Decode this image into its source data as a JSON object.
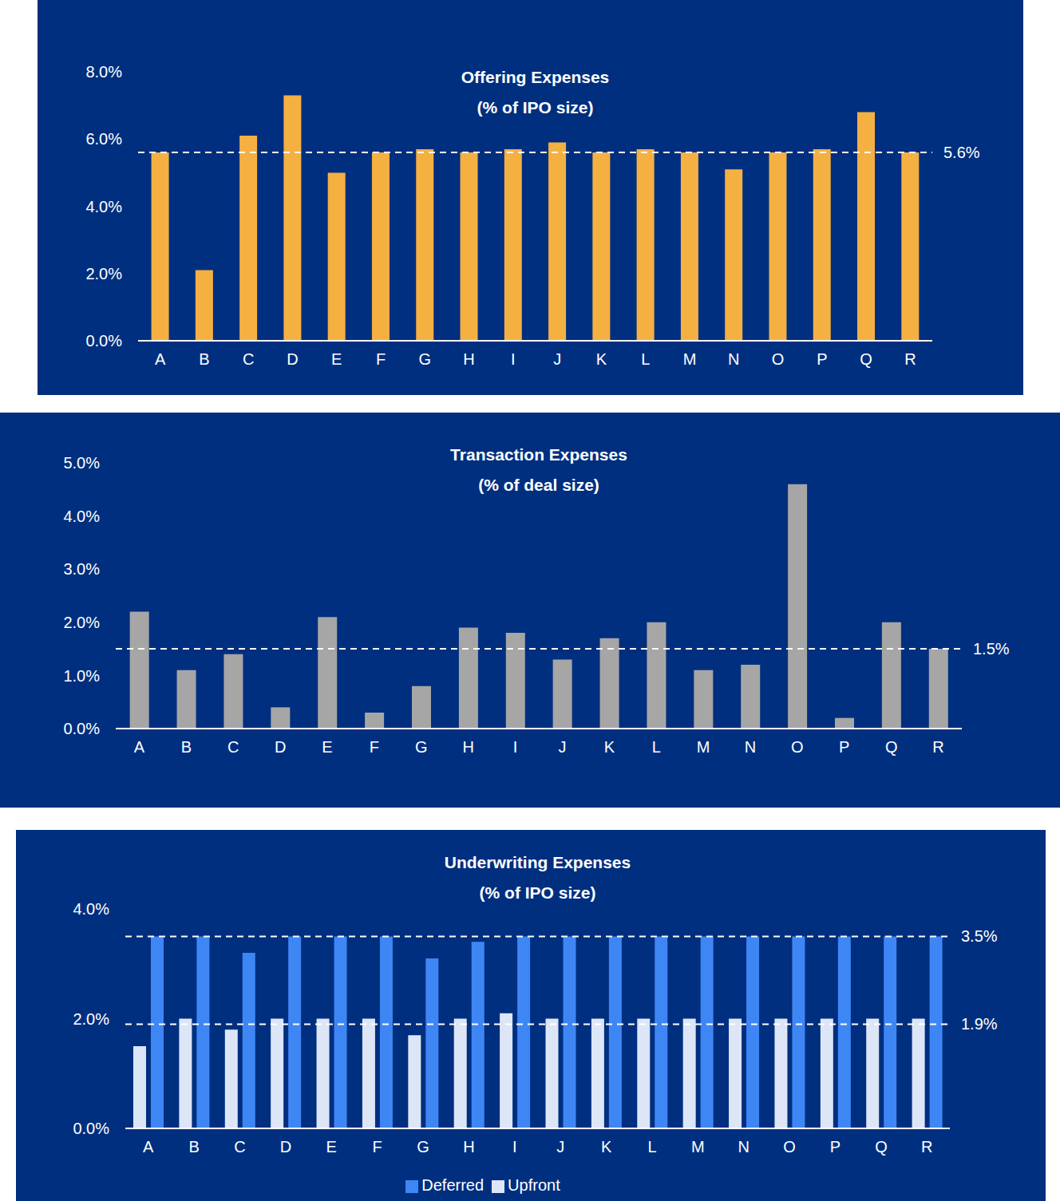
{
  "chart_data": [
    {
      "type": "bar",
      "title": "Offering Expenses",
      "subtitle": "(% of IPO size)",
      "categories": [
        "A",
        "B",
        "C",
        "D",
        "E",
        "F",
        "G",
        "H",
        "I",
        "J",
        "K",
        "L",
        "M",
        "N",
        "O",
        "P",
        "Q",
        "R"
      ],
      "values": [
        5.6,
        2.1,
        6.1,
        7.3,
        5.0,
        5.6,
        5.7,
        5.6,
        5.7,
        5.9,
        5.6,
        5.7,
        5.6,
        5.1,
        5.6,
        5.7,
        6.8,
        5.6
      ],
      "color": "#f5b042",
      "ylim": [
        0,
        8
      ],
      "yticks": [
        {
          "value": 0,
          "label": "0.0%"
        },
        {
          "value": 2,
          "label": "2.0%"
        },
        {
          "value": 4,
          "label": "4.0%"
        },
        {
          "value": 6,
          "label": "6.0%"
        },
        {
          "value": 8,
          "label": "8.0%"
        }
      ],
      "grid": false,
      "annotations": [
        {
          "value": 5.6,
          "label": "5.6%"
        }
      ]
    },
    {
      "type": "bar",
      "title": "Transaction Expenses",
      "subtitle": "(% of deal size)",
      "categories": [
        "A",
        "B",
        "C",
        "D",
        "E",
        "F",
        "G",
        "H",
        "I",
        "J",
        "K",
        "L",
        "M",
        "N",
        "O",
        "P",
        "Q",
        "R"
      ],
      "values": [
        2.2,
        1.1,
        1.4,
        0.4,
        2.1,
        0.3,
        0.8,
        1.9,
        1.8,
        1.3,
        1.7,
        2.0,
        1.1,
        1.2,
        4.6,
        0.2,
        2.0,
        1.5
      ],
      "color": "#a6a6a6",
      "ylim": [
        0,
        5
      ],
      "yticks": [
        {
          "value": 0,
          "label": "0.0%"
        },
        {
          "value": 1,
          "label": "1.0%"
        },
        {
          "value": 2,
          "label": "2.0%"
        },
        {
          "value": 3,
          "label": "3.0%"
        },
        {
          "value": 4,
          "label": "4.0%"
        },
        {
          "value": 5,
          "label": "5.0%"
        }
      ],
      "grid": false,
      "annotations": [
        {
          "value": 1.5,
          "label": "1.5%"
        }
      ]
    },
    {
      "type": "bar",
      "title": "Underwriting Expenses",
      "subtitle": "(% of IPO size)",
      "categories": [
        "A",
        "B",
        "C",
        "D",
        "E",
        "F",
        "G",
        "H",
        "I",
        "J",
        "K",
        "L",
        "M",
        "N",
        "O",
        "P",
        "Q",
        "R"
      ],
      "series": [
        {
          "name": "Upfront",
          "color": "#dce6f7",
          "values": [
            1.5,
            2.0,
            1.8,
            2.0,
            2.0,
            2.0,
            1.7,
            2.0,
            2.1,
            2.0,
            2.0,
            2.0,
            2.0,
            2.0,
            2.0,
            2.0,
            2.0,
            2.0
          ]
        },
        {
          "name": "Deferred",
          "color": "#3f86f5",
          "values": [
            3.5,
            3.5,
            3.2,
            3.5,
            3.5,
            3.5,
            3.1,
            3.4,
            3.5,
            3.5,
            3.5,
            3.5,
            3.5,
            3.5,
            3.5,
            3.5,
            3.5,
            3.5
          ]
        }
      ],
      "ylim": [
        0,
        4
      ],
      "yticks": [
        {
          "value": 0,
          "label": "0.0%"
        },
        {
          "value": 2,
          "label": "2.0%"
        },
        {
          "value": 4,
          "label": "4.0%"
        }
      ],
      "grid": false,
      "legend": "bottom",
      "annotations": [
        {
          "value": 3.5,
          "label": "3.5%"
        },
        {
          "value": 1.9,
          "label": "1.9%"
        }
      ]
    }
  ]
}
